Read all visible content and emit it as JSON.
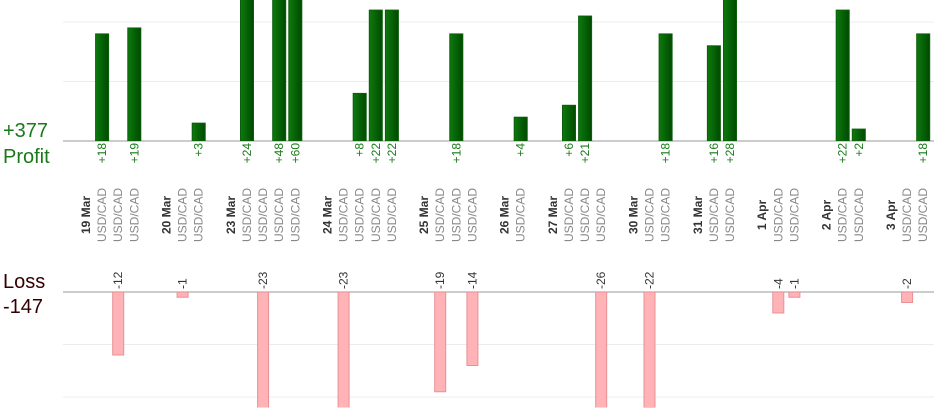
{
  "chart_data": {
    "type": "profit-loss-bars",
    "profit_title": "Profit",
    "profit_total": {
      "value": 377,
      "label": "+377"
    },
    "loss_title": "Loss",
    "loss_total": -147,
    "profit_color": "#0b5e0b",
    "loss_color": "#ffb3b6",
    "profit_ylim": [
      0,
      23.7
    ],
    "profit_yticks": [
      10,
      20
    ],
    "loss_ylim": [
      -22,
      0
    ],
    "loss_yticks": [
      -10,
      -20
    ],
    "grid": true,
    "days": [
      {
        "date": "19 Mar",
        "trades": [
          {
            "symbol": "USD/CAD",
            "value": 18,
            "label": "+18"
          },
          {
            "symbol": "USD/CAD",
            "value": -12
          },
          {
            "symbol": "USD/CAD",
            "value": 19,
            "label": "+19"
          }
        ]
      },
      {
        "date": "20 Mar",
        "trades": [
          {
            "symbol": "USD/CAD",
            "value": -1
          },
          {
            "symbol": "USD/CAD",
            "value": 3,
            "label": "+3"
          }
        ]
      },
      {
        "date": "23 Mar",
        "trades": [
          {
            "symbol": "USD/CAD",
            "value": 24,
            "label": "+24"
          },
          {
            "symbol": "USD/CAD",
            "value": -23
          },
          {
            "symbol": "USD/CAD",
            "value": 48,
            "label": "+48"
          },
          {
            "symbol": "USD/CAD",
            "value": 60,
            "label": "+60"
          }
        ]
      },
      {
        "date": "24 Mar",
        "trades": [
          {
            "symbol": "USD/CAD",
            "value": -23
          },
          {
            "symbol": "USD/CAD",
            "value": 8,
            "label": "+8"
          },
          {
            "symbol": "USD/CAD",
            "value": 22,
            "label": "+22"
          },
          {
            "symbol": "USD/CAD",
            "value": 22,
            "label": "+22"
          }
        ]
      },
      {
        "date": "25 Mar",
        "trades": [
          {
            "symbol": "USD/CAD",
            "value": -19
          },
          {
            "symbol": "USD/CAD",
            "value": 18,
            "label": "+18"
          },
          {
            "symbol": "USD/CAD",
            "value": -14
          }
        ]
      },
      {
        "date": "26 Mar",
        "trades": [
          {
            "symbol": "USD/CAD",
            "value": 4,
            "label": "+4"
          }
        ]
      },
      {
        "date": "27 Mar",
        "trades": [
          {
            "symbol": "USD/CAD",
            "value": 6,
            "label": "+6"
          },
          {
            "symbol": "USD/CAD",
            "value": 21,
            "label": "+21"
          },
          {
            "symbol": "USD/CAD",
            "value": -26
          }
        ]
      },
      {
        "date": "30 Mar",
        "trades": [
          {
            "symbol": "USD/CAD",
            "value": -22
          },
          {
            "symbol": "USD/CAD",
            "value": 18,
            "label": "+18"
          }
        ]
      },
      {
        "date": "31 Mar",
        "trades": [
          {
            "symbol": "USD/CAD",
            "value": 16,
            "label": "+16"
          },
          {
            "symbol": "USD/CAD",
            "value": 28,
            "label": "+28"
          }
        ]
      },
      {
        "date": "1 Apr",
        "trades": [
          {
            "symbol": "USD/CAD",
            "value": -4
          },
          {
            "symbol": "USD/CAD",
            "value": -1
          }
        ]
      },
      {
        "date": "2 Apr",
        "trades": [
          {
            "symbol": "USD/CAD",
            "value": 22,
            "label": "+22"
          },
          {
            "symbol": "USD/CAD",
            "value": 2,
            "label": "+2"
          }
        ]
      },
      {
        "date": "3 Apr",
        "trades": [
          {
            "symbol": "USD/CAD",
            "value": -2
          },
          {
            "symbol": "USD/CAD",
            "value": 18,
            "label": "+18"
          }
        ]
      }
    ]
  }
}
